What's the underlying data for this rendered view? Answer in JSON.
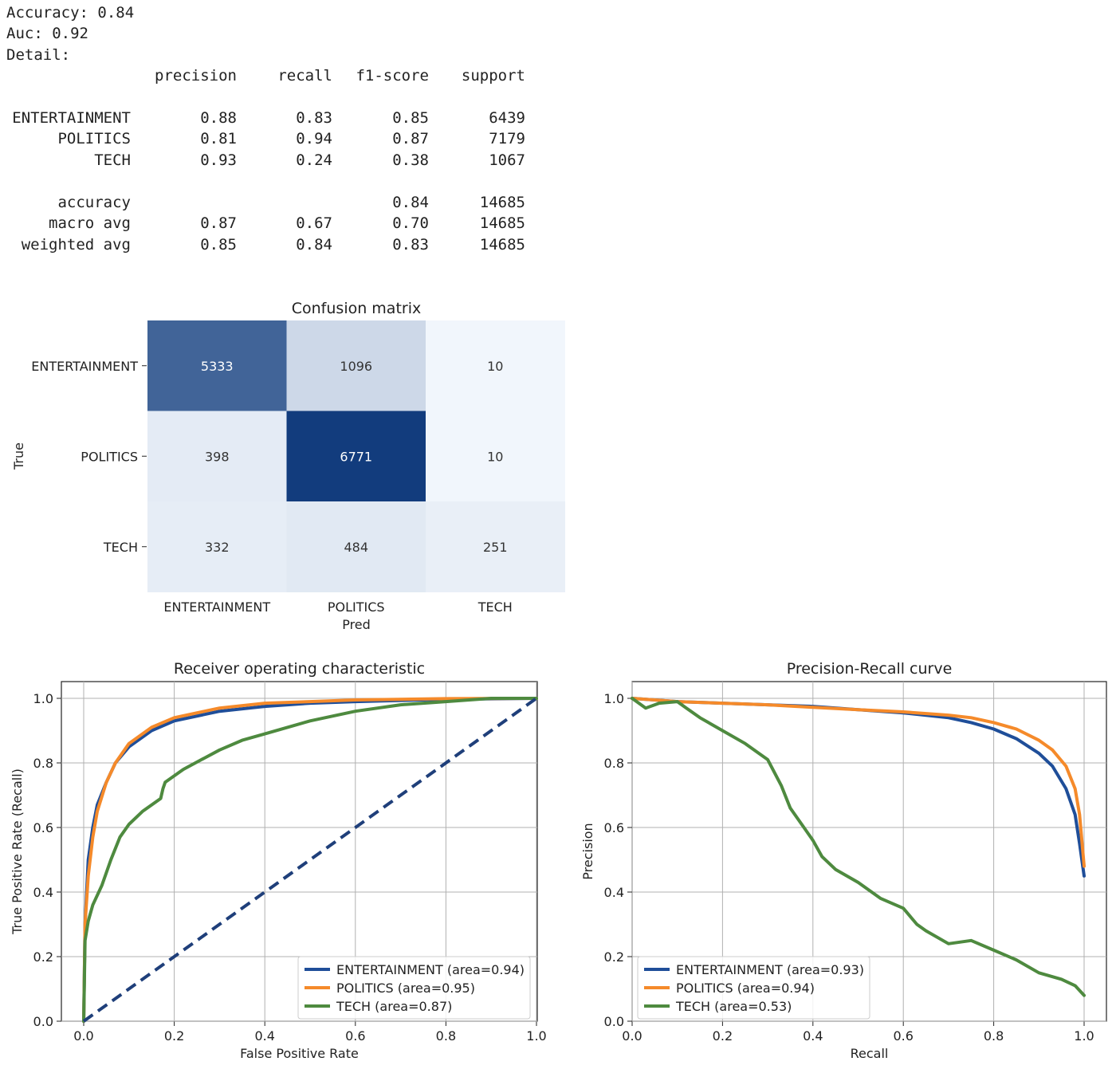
{
  "report": {
    "accuracy_line": "Accuracy: 0.84",
    "auc_line": "Auc: 0.92",
    "detail_label": "Detail:",
    "columns": [
      "precision",
      "recall",
      "f1-score",
      "support"
    ],
    "rows": [
      {
        "label": "ENTERTAINMENT",
        "cells": [
          "0.88",
          "0.83",
          "0.85",
          "6439"
        ]
      },
      {
        "label": "POLITICS",
        "cells": [
          "0.81",
          "0.94",
          "0.87",
          "7179"
        ]
      },
      {
        "label": "TECH",
        "cells": [
          "0.93",
          "0.24",
          "0.38",
          "1067"
        ]
      },
      {
        "label": "accuracy",
        "cells": [
          "",
          "",
          "0.84",
          "14685"
        ]
      },
      {
        "label": "macro avg",
        "cells": [
          "0.87",
          "0.67",
          "0.70",
          "14685"
        ]
      },
      {
        "label": "weighted avg",
        "cells": [
          "0.85",
          "0.84",
          "0.83",
          "14685"
        ]
      }
    ]
  },
  "chart_data": [
    {
      "type": "heatmap",
      "title": "Confusion matrix",
      "xlabel": "Pred",
      "ylabel": "True",
      "x_categories": [
        "ENTERTAINMENT",
        "POLITICS",
        "TECH"
      ],
      "y_categories": [
        "ENTERTAINMENT",
        "POLITICS",
        "TECH"
      ],
      "values": [
        [
          5333,
          1096,
          10
        ],
        [
          398,
          6771,
          10
        ],
        [
          332,
          484,
          251
        ]
      ],
      "colormap": "Blues"
    },
    {
      "type": "line",
      "title": "Receiver operating characteristic",
      "xlabel": "False Positive Rate",
      "ylabel": "True Positive Rate (Recall)",
      "xlim": [
        0,
        1
      ],
      "ylim": [
        0,
        1.0
      ],
      "xticks": [
        "0.0",
        "0.2",
        "0.4",
        "0.6",
        "0.8",
        "1.0"
      ],
      "yticks": [
        "0.0",
        "0.2",
        "0.4",
        "0.6",
        "0.8",
        "1.0"
      ],
      "grid": true,
      "legend_position": "lower-right",
      "series": [
        {
          "name": "ENTERTAINMENT (area=0.94)",
          "color": "#1f4e99",
          "x": [
            0,
            0.003,
            0.01,
            0.02,
            0.03,
            0.05,
            0.07,
            0.1,
            0.15,
            0.2,
            0.3,
            0.4,
            0.5,
            0.6,
            0.8,
            1.0
          ],
          "y": [
            0,
            0.3,
            0.5,
            0.6,
            0.67,
            0.74,
            0.8,
            0.85,
            0.9,
            0.93,
            0.96,
            0.975,
            0.985,
            0.99,
            0.997,
            1.0
          ]
        },
        {
          "name": "POLITICS (area=0.95)",
          "color": "#f58a2a",
          "x": [
            0,
            0.003,
            0.01,
            0.02,
            0.03,
            0.05,
            0.07,
            0.1,
            0.15,
            0.2,
            0.3,
            0.4,
            0.5,
            0.6,
            0.8,
            1.0
          ],
          "y": [
            0,
            0.3,
            0.45,
            0.57,
            0.65,
            0.74,
            0.8,
            0.86,
            0.91,
            0.94,
            0.97,
            0.985,
            0.99,
            0.995,
            0.999,
            1.0
          ]
        },
        {
          "name": "TECH (area=0.87)",
          "color": "#4e8a3f",
          "x": [
            0,
            0.003,
            0.01,
            0.02,
            0.04,
            0.06,
            0.08,
            0.1,
            0.13,
            0.17,
            0.175,
            0.18,
            0.22,
            0.26,
            0.3,
            0.35,
            0.4,
            0.45,
            0.5,
            0.6,
            0.7,
            0.8,
            0.9,
            1.0
          ],
          "y": [
            0,
            0.25,
            0.31,
            0.36,
            0.42,
            0.5,
            0.57,
            0.61,
            0.65,
            0.69,
            0.72,
            0.74,
            0.78,
            0.81,
            0.84,
            0.87,
            0.89,
            0.91,
            0.93,
            0.96,
            0.98,
            0.99,
            1.0,
            1.0
          ]
        },
        {
          "name": "",
          "color": "#1f3f7a",
          "dashed": true,
          "x": [
            0,
            1
          ],
          "y": [
            0,
            1
          ]
        }
      ]
    },
    {
      "type": "line",
      "title": "Precision-Recall curve",
      "xlabel": "Recall",
      "ylabel": "Precision",
      "xlim": [
        0,
        1
      ],
      "ylim": [
        0,
        1.0
      ],
      "xticks": [
        "0.0",
        "0.2",
        "0.4",
        "0.6",
        "0.8",
        "1.0"
      ],
      "yticks": [
        "0.0",
        "0.2",
        "0.4",
        "0.6",
        "0.8",
        "1.0"
      ],
      "grid": true,
      "legend_position": "lower-left",
      "series": [
        {
          "name": "ENTERTAINMENT (area=0.93)",
          "color": "#1f4e99",
          "x": [
            0,
            0.05,
            0.1,
            0.2,
            0.3,
            0.4,
            0.5,
            0.6,
            0.7,
            0.75,
            0.8,
            0.85,
            0.9,
            0.93,
            0.96,
            0.98,
            0.99,
            1.0
          ],
          "y": [
            1.0,
            0.995,
            0.99,
            0.985,
            0.98,
            0.975,
            0.965,
            0.955,
            0.94,
            0.925,
            0.905,
            0.875,
            0.83,
            0.79,
            0.72,
            0.64,
            0.55,
            0.45
          ]
        },
        {
          "name": "POLITICS (area=0.94)",
          "color": "#f58a2a",
          "x": [
            0,
            0.05,
            0.1,
            0.2,
            0.3,
            0.4,
            0.5,
            0.6,
            0.7,
            0.75,
            0.8,
            0.85,
            0.9,
            0.93,
            0.96,
            0.98,
            0.99,
            1.0
          ],
          "y": [
            1.0,
            0.995,
            0.99,
            0.985,
            0.98,
            0.972,
            0.965,
            0.958,
            0.948,
            0.94,
            0.925,
            0.905,
            0.87,
            0.84,
            0.79,
            0.72,
            0.64,
            0.48
          ]
        },
        {
          "name": "TECH (area=0.53)",
          "color": "#4e8a3f",
          "x": [
            0,
            0.03,
            0.06,
            0.1,
            0.12,
            0.15,
            0.2,
            0.25,
            0.28,
            0.3,
            0.33,
            0.35,
            0.38,
            0.4,
            0.42,
            0.45,
            0.5,
            0.55,
            0.6,
            0.63,
            0.65,
            0.7,
            0.75,
            0.8,
            0.85,
            0.9,
            0.95,
            0.98,
            1.0
          ],
          "y": [
            1.0,
            0.97,
            0.985,
            0.99,
            0.97,
            0.94,
            0.9,
            0.86,
            0.83,
            0.81,
            0.73,
            0.66,
            0.6,
            0.56,
            0.51,
            0.47,
            0.43,
            0.38,
            0.35,
            0.3,
            0.28,
            0.24,
            0.25,
            0.22,
            0.19,
            0.15,
            0.13,
            0.11,
            0.08
          ]
        }
      ]
    }
  ]
}
